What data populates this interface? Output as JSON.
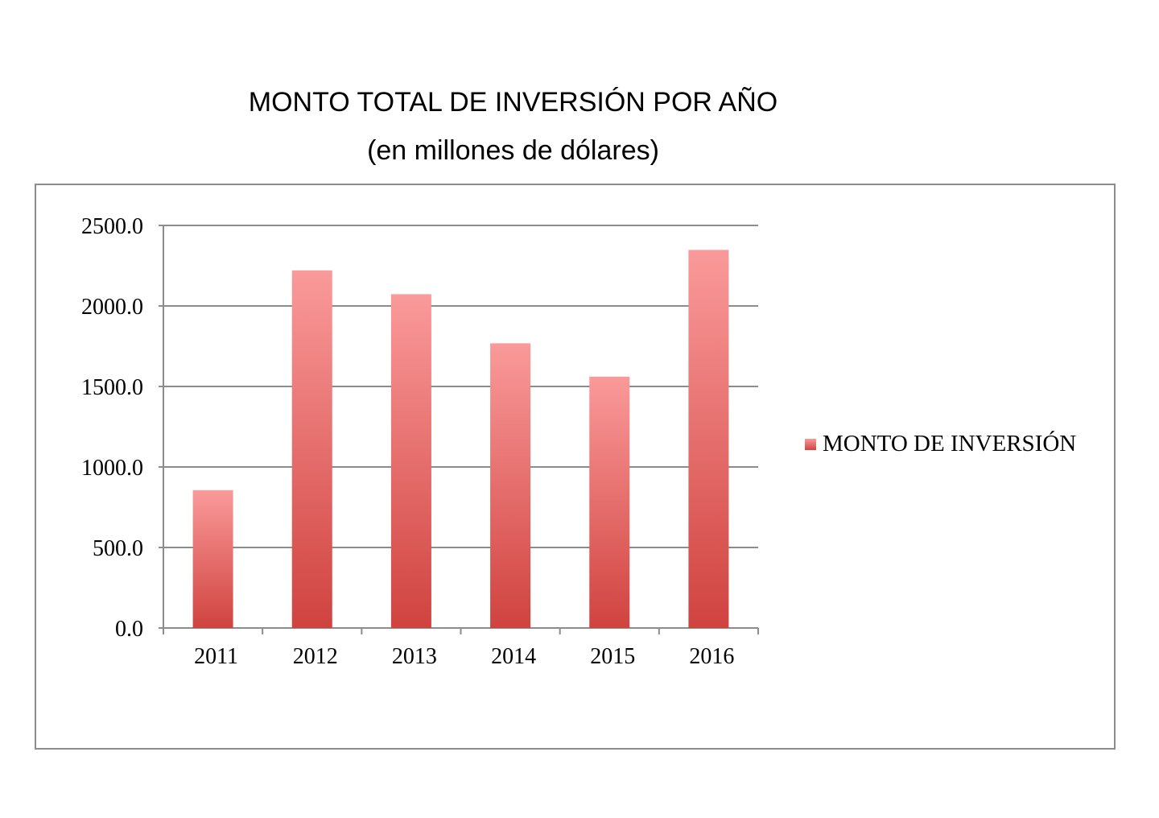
{
  "chart_data": {
    "type": "bar",
    "title": "MONTO TOTAL DE INVERSIÓN POR AÑO",
    "subtitle": "(en millones de dólares)",
    "categories": [
      "2011",
      "2012",
      "2013",
      "2014",
      "2015",
      "2016"
    ],
    "series": [
      {
        "name": "MONTO DE INVERSIÓN",
        "values": [
          856,
          2221,
          2073,
          1768,
          1561,
          2348
        ]
      }
    ],
    "yticks": [
      "0.0",
      "500.0",
      "1000.0",
      "1500.0",
      "2000.0",
      "2500.0"
    ],
    "ylim": [
      0,
      2500
    ],
    "grid": true,
    "legend": "right",
    "colors": {
      "bar_top": "#fa9a9a",
      "bar_bottom": "#d0433f",
      "grid": "#8c8c8c"
    }
  }
}
